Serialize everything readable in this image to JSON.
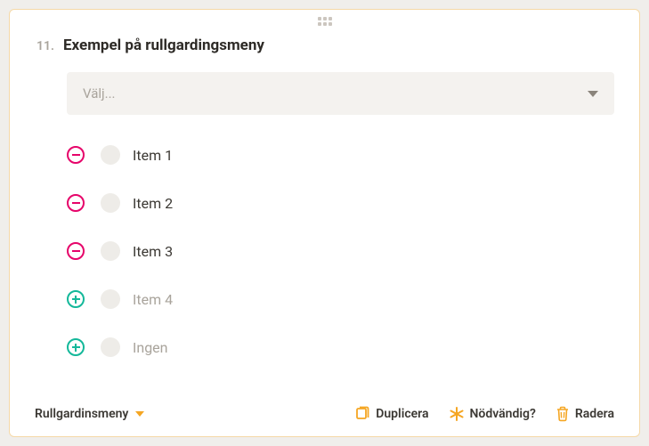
{
  "question": {
    "number": "11.",
    "title": "Exempel på rullgardingsmeny",
    "select_placeholder": "Välj..."
  },
  "items": [
    {
      "label": "Item 1",
      "action": "remove",
      "muted": false
    },
    {
      "label": "Item 2",
      "action": "remove",
      "muted": false
    },
    {
      "label": "Item 3",
      "action": "remove",
      "muted": false
    },
    {
      "label": "Item 4",
      "action": "add",
      "muted": true
    },
    {
      "label": "Ingen",
      "action": "add",
      "muted": true
    }
  ],
  "footer": {
    "type_label": "Rullgardinsmeny",
    "duplicate_label": "Duplicera",
    "required_label": "Nödvändig?",
    "delete_label": "Radera"
  },
  "colors": {
    "card_border": "#f5d9a8",
    "remove": "#e6046a",
    "add": "#14b89a",
    "accent": "#f5a623",
    "muted_text": "#a9a49c",
    "text": "#3b3833",
    "select_bg": "#f4f2ef"
  }
}
